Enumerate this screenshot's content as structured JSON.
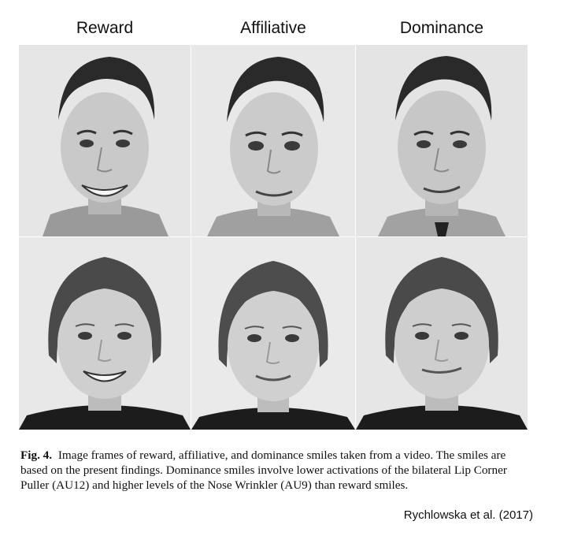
{
  "columns": [
    "Reward",
    "Affiliative",
    "Dominance"
  ],
  "caption": {
    "label": "Fig. 4.",
    "text": "Image frames of reward, affiliative, and dominance smiles taken from a video. The smiles are based on the present findings. Dominance smiles involve lower activations of the bilateral Lip Corner Puller (AU12) and higher levels of the Nose Wrinkler (AU9) than reward smiles."
  },
  "credit": "Rychlowska et al. (2017)",
  "photos": [
    {
      "row": "male",
      "expression": "reward"
    },
    {
      "row": "male",
      "expression": "affiliative"
    },
    {
      "row": "male",
      "expression": "dominance"
    },
    {
      "row": "female",
      "expression": "reward"
    },
    {
      "row": "female",
      "expression": "affiliative"
    },
    {
      "row": "female",
      "expression": "dominance"
    }
  ]
}
